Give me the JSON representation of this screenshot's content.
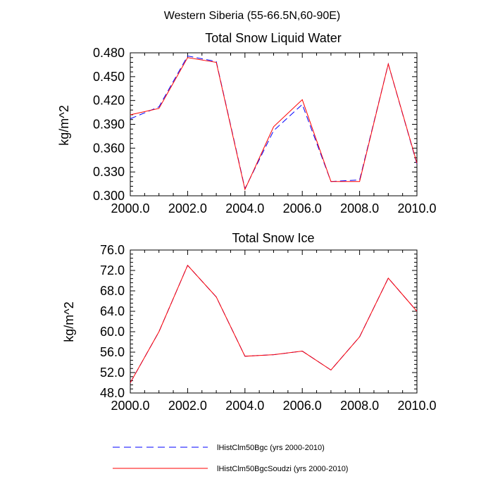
{
  "figure": {
    "title": "Western Siberia (55-66.5N,60-90E)"
  },
  "legend": [
    {
      "label": "lHistClm50Bgc (yrs 2000-2010)",
      "color": "#0000ff",
      "dash": true
    },
    {
      "label": "lHistClm50BgcSoudzi (yrs 2000-2010)",
      "color": "#ff0000",
      "dash": false
    }
  ],
  "chart_data": [
    {
      "type": "line",
      "title": "Total Snow Liquid Water",
      "xlabel": "",
      "ylabel": "kg/m^2",
      "xlim": [
        2000,
        2010
      ],
      "ylim": [
        0.3,
        0.48
      ],
      "xticks": [
        "2000.0",
        "2002.0",
        "2004.0",
        "2006.0",
        "2008.0",
        "2010.0"
      ],
      "xtick_values": [
        2000,
        2002,
        2004,
        2006,
        2008,
        2010
      ],
      "yticks": [
        "0.300",
        "0.330",
        "0.360",
        "0.390",
        "0.420",
        "0.450",
        "0.480"
      ],
      "ytick_values": [
        0.3,
        0.33,
        0.36,
        0.39,
        0.42,
        0.45,
        0.48
      ],
      "x": [
        2000,
        2001,
        2002,
        2003,
        2004,
        2005,
        2006,
        2007,
        2008,
        2009,
        2010
      ],
      "series": [
        {
          "name": "lHistClm50Bgc (yrs 2000-2010)",
          "color": "#0000ff",
          "dash": true,
          "values": [
            0.397,
            0.412,
            0.476,
            0.469,
            0.309,
            0.382,
            0.415,
            0.318,
            0.32,
            0.466,
            0.34
          ]
        },
        {
          "name": "lHistClm50BgcSoudzi (yrs 2000-2010)",
          "color": "#ff0000",
          "dash": false,
          "values": [
            0.402,
            0.41,
            0.474,
            0.468,
            0.308,
            0.387,
            0.421,
            0.318,
            0.318,
            0.466,
            0.341
          ]
        }
      ]
    },
    {
      "type": "line",
      "title": "Total Snow Ice",
      "xlabel": "",
      "ylabel": "kg/m^2",
      "xlim": [
        2000,
        2010
      ],
      "ylim": [
        48,
        76
      ],
      "xticks": [
        "2000.0",
        "2002.0",
        "2004.0",
        "2006.0",
        "2008.0",
        "2010.0"
      ],
      "xtick_values": [
        2000,
        2002,
        2004,
        2006,
        2008,
        2010
      ],
      "yticks": [
        "48.0",
        "52.0",
        "56.0",
        "60.0",
        "64.0",
        "68.0",
        "72.0",
        "76.0"
      ],
      "ytick_values": [
        48,
        52,
        56,
        60,
        64,
        68,
        72,
        76
      ],
      "x": [
        2000,
        2001,
        2002,
        2003,
        2004,
        2005,
        2006,
        2007,
        2008,
        2009,
        2010
      ],
      "series": [
        {
          "name": "lHistClm50Bgc (yrs 2000-2010)",
          "color": "#0000ff",
          "dash": true,
          "values": [
            50.0,
            60.0,
            73.0,
            66.8,
            55.2,
            55.5,
            56.2,
            52.5,
            59.0,
            70.5,
            64.0
          ]
        },
        {
          "name": "lHistClm50BgcSoudzi (yrs 2000-2010)",
          "color": "#ff0000",
          "dash": false,
          "values": [
            50.0,
            60.0,
            73.0,
            66.8,
            55.2,
            55.5,
            56.2,
            52.5,
            59.0,
            70.5,
            64.0
          ]
        }
      ]
    }
  ]
}
